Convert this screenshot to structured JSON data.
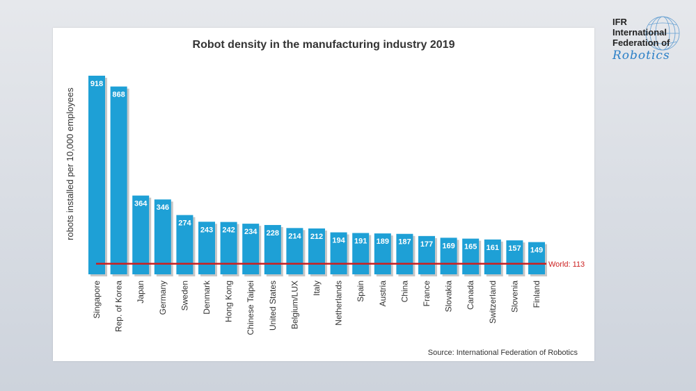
{
  "logo": {
    "lines": [
      "IFR",
      "International",
      "Federation of"
    ],
    "script": "Robotics",
    "globe_icon": "globe-icon"
  },
  "source": "Source: International Federation of Robotics",
  "colors": {
    "bar": "#1ea0d6",
    "bar_shadow": "#c8c8c8",
    "world_line": "#cc1f1f",
    "label_text": "#ffffff"
  },
  "chart_data": {
    "type": "bar",
    "title": "Robot density in the manufacturing industry 2019",
    "ylabel": "robots installed per 10,000 employees",
    "xlabel": "",
    "categories": [
      "Singapore",
      "Rep. of Korea",
      "Japan",
      "Germany",
      "Sweden",
      "Denmark",
      "Hong Kong",
      "Chinese Taipei",
      "United States",
      "Belgium/LUX",
      "Italy",
      "Netherlands",
      "Spain",
      "Austria",
      "China",
      "France",
      "Slovakia",
      "Canada",
      "Switzerland",
      "Slovenia",
      "Finland"
    ],
    "values": [
      918,
      868,
      364,
      346,
      274,
      243,
      242,
      234,
      228,
      214,
      212,
      194,
      191,
      189,
      187,
      177,
      169,
      165,
      161,
      157,
      149
    ],
    "ylim": [
      0,
      918
    ],
    "reference_line": {
      "value": 113,
      "label": "World: 113"
    },
    "grid": false,
    "legend": "none"
  }
}
